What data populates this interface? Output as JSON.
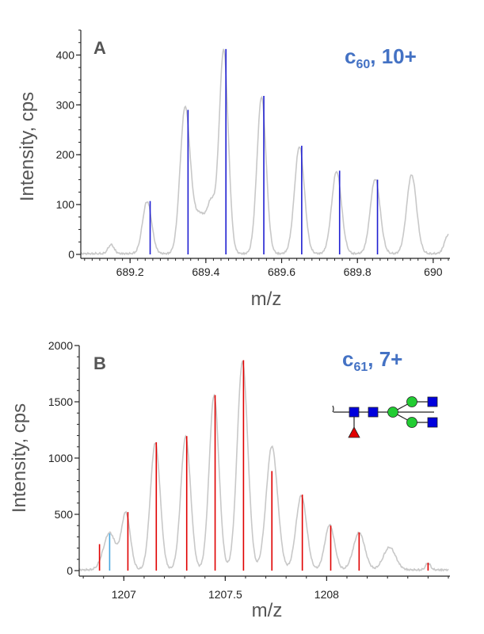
{
  "colors": {
    "profile": "#c8c8c8",
    "axis": "#222222",
    "label_blue": "#4472c4",
    "stick_blue": "#1f1fd1",
    "stick_red": "#e00000",
    "stick_cyan": "#4aa8e0",
    "glycan_square": "#0000dd",
    "glycan_circle": "#22cc33",
    "glycan_triangle": "#e00000"
  },
  "chart_data": [
    {
      "type": "line",
      "panel": "A",
      "ion_label": {
        "base": "c",
        "sub": "60",
        "suffix": ", 10+"
      },
      "xlabel": "m/z",
      "ylabel": "Intensity, cps",
      "xlim": [
        689.07,
        690.04
      ],
      "ylim": [
        0,
        450
      ],
      "xticks": [
        689.2,
        689.4,
        689.6,
        689.8,
        690.0
      ],
      "xtick_labels": [
        "689.2",
        "689.4",
        "689.6",
        "689.8",
        "690"
      ],
      "yticks": [
        0,
        100,
        200,
        300,
        400
      ],
      "ytick_labels": [
        "0",
        "100",
        "200",
        "300",
        "400"
      ],
      "sticks": [
        {
          "x": 689.253,
          "y": 107,
          "color": "blue"
        },
        {
          "x": 689.353,
          "y": 290,
          "color": "blue"
        },
        {
          "x": 689.453,
          "y": 412,
          "color": "blue"
        },
        {
          "x": 689.553,
          "y": 318,
          "color": "blue"
        },
        {
          "x": 689.653,
          "y": 218,
          "color": "blue"
        },
        {
          "x": 689.753,
          "y": 168,
          "color": "blue"
        },
        {
          "x": 689.853,
          "y": 150,
          "color": "blue"
        }
      ],
      "profile_peaks": [
        {
          "x": 689.15,
          "y": 18,
          "w": 0.008
        },
        {
          "x": 689.245,
          "y": 105,
          "w": 0.012
        },
        {
          "x": 689.345,
          "y": 285,
          "w": 0.013
        },
        {
          "x": 689.385,
          "y": 80,
          "w": 0.02
        },
        {
          "x": 689.415,
          "y": 75,
          "w": 0.01
        },
        {
          "x": 689.447,
          "y": 410,
          "w": 0.012
        },
        {
          "x": 689.547,
          "y": 315,
          "w": 0.012
        },
        {
          "x": 689.647,
          "y": 215,
          "w": 0.013
        },
        {
          "x": 689.745,
          "y": 165,
          "w": 0.013
        },
        {
          "x": 689.847,
          "y": 150,
          "w": 0.013
        },
        {
          "x": 689.943,
          "y": 158,
          "w": 0.013
        },
        {
          "x": 690.04,
          "y": 38,
          "w": 0.01
        }
      ],
      "glycan": false
    },
    {
      "type": "line",
      "panel": "B",
      "ion_label": {
        "base": "c",
        "sub": "61",
        "suffix": ", 7+"
      },
      "xlabel": "m/z",
      "ylabel": "Intensity, cps",
      "xlim": [
        1206.78,
        1208.6
      ],
      "ylim": [
        0,
        2000
      ],
      "xticks": [
        1207.0,
        1207.5,
        1208.0
      ],
      "xtick_labels": [
        "1207",
        "1207.5",
        "1208"
      ],
      "yticks": [
        0,
        500,
        1000,
        1500,
        2000
      ],
      "ytick_labels": [
        "0",
        "500",
        "1000",
        "1500",
        "2000"
      ],
      "sticks": [
        {
          "x": 1206.88,
          "y": 235,
          "color": "red"
        },
        {
          "x": 1206.93,
          "y": 330,
          "color": "cyan"
        },
        {
          "x": 1207.02,
          "y": 520,
          "color": "red"
        },
        {
          "x": 1207.16,
          "y": 1140,
          "color": "red"
        },
        {
          "x": 1207.31,
          "y": 1195,
          "color": "red"
        },
        {
          "x": 1207.45,
          "y": 1560,
          "color": "red"
        },
        {
          "x": 1207.59,
          "y": 1870,
          "color": "red"
        },
        {
          "x": 1207.73,
          "y": 885,
          "color": "red"
        },
        {
          "x": 1207.88,
          "y": 675,
          "color": "red"
        },
        {
          "x": 1208.02,
          "y": 400,
          "color": "red"
        },
        {
          "x": 1208.16,
          "y": 340,
          "color": "red"
        },
        {
          "x": 1208.5,
          "y": 70,
          "color": "red"
        }
      ],
      "profile_peaks": [
        {
          "x": 1206.93,
          "y": 330,
          "w": 0.03
        },
        {
          "x": 1207.01,
          "y": 505,
          "w": 0.022
        },
        {
          "x": 1207.155,
          "y": 1130,
          "w": 0.024
        },
        {
          "x": 1207.305,
          "y": 1185,
          "w": 0.024
        },
        {
          "x": 1207.445,
          "y": 1550,
          "w": 0.024
        },
        {
          "x": 1207.585,
          "y": 1850,
          "w": 0.026
        },
        {
          "x": 1207.73,
          "y": 1100,
          "w": 0.028
        },
        {
          "x": 1207.875,
          "y": 660,
          "w": 0.026
        },
        {
          "x": 1208.015,
          "y": 400,
          "w": 0.024
        },
        {
          "x": 1208.16,
          "y": 330,
          "w": 0.028
        },
        {
          "x": 1208.31,
          "y": 200,
          "w": 0.03
        },
        {
          "x": 1208.5,
          "y": 60,
          "w": 0.012
        }
      ],
      "glycan": true
    }
  ]
}
